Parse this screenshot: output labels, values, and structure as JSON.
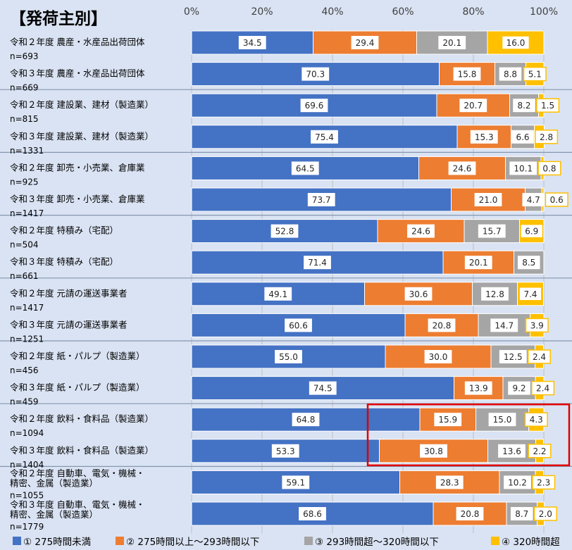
{
  "chart_data": {
    "type": "bar",
    "orientation": "horizontal",
    "stacked": "percent",
    "title": "【発荷主別】",
    "xticks": [
      "0%",
      "20%",
      "40%",
      "60%",
      "80%",
      "100%"
    ],
    "xlim": [
      0,
      100
    ],
    "grid": true,
    "legend_position": "bottom",
    "categories": [
      {
        "label": "令和２年度 農産・水産品出荷団体",
        "n": "n=693"
      },
      {
        "label": "令和３年度 農産・水産品出荷団体",
        "n": "n=669"
      },
      {
        "label": "令和２年度 建設業、建材（製造業）",
        "n": "n=815"
      },
      {
        "label": "令和３年度 建設業、建材（製造業）",
        "n": "n=1331"
      },
      {
        "label": "令和２年度 卸売・小売業、倉庫業",
        "n": "n=925"
      },
      {
        "label": "令和３年度 卸売・小売業、倉庫業",
        "n": "n=1417"
      },
      {
        "label": "令和２年度 特積み（宅配）",
        "n": "n=504"
      },
      {
        "label": "令和３年度 特積み（宅配）",
        "n": "n=661"
      },
      {
        "label": "令和２年度 元請の運送事業者",
        "n": "n=1417"
      },
      {
        "label": "令和３年度 元請の運送事業者",
        "n": "n=1251"
      },
      {
        "label": "令和２年度 紙・パルプ（製造業）",
        "n": "n=456"
      },
      {
        "label": "令和３年度 紙・パルプ（製造業）",
        "n": "n=459"
      },
      {
        "label": "令和２年度 飲料・食料品（製造業）",
        "n": "n=1094"
      },
      {
        "label": "令和３年度 飲料・食料品（製造業）",
        "n": "n=1404"
      },
      {
        "label": "令和２年度 自動車、電気・機械・\n精密、金属（製造業）",
        "n": "n=1055"
      },
      {
        "label": "令和３年度 自動車、電気・機械・\n精密、金属（製造業）",
        "n": "n=1779"
      }
    ],
    "series": [
      {
        "name": "① 275時間未満",
        "color": "#4472C4",
        "values": [
          34.5,
          70.3,
          69.6,
          75.4,
          64.5,
          73.7,
          52.8,
          71.4,
          49.1,
          60.6,
          55.0,
          74.5,
          64.8,
          53.3,
          59.1,
          68.6
        ],
        "labels": [
          "34.5",
          "70.3",
          "69.6",
          "75.4",
          "64.5",
          "73.7",
          "52.8",
          "71.4",
          "49.1",
          "60.6",
          "55.0",
          "74.5",
          "64.8",
          "53.3",
          "59.1",
          "68.6"
        ]
      },
      {
        "name": "② 275時間以上～293時間以下",
        "color": "#ED7D31",
        "values": [
          29.4,
          15.8,
          20.7,
          15.3,
          24.6,
          21.0,
          24.6,
          20.1,
          30.6,
          20.8,
          30.0,
          13.9,
          15.9,
          30.8,
          28.3,
          20.8
        ],
        "labels": [
          "29.4",
          "15.8",
          "20.7",
          "15.3",
          "24.6",
          "21.0",
          "24.6",
          "20.1",
          "30.6",
          "20.8",
          "30.0",
          "13.9",
          "15.9",
          "30.8",
          "28.3",
          "20.8"
        ]
      },
      {
        "name": "③ 293時間超～320時間以下",
        "color": "#A5A5A5",
        "values": [
          20.1,
          8.8,
          8.2,
          6.6,
          10.1,
          4.7,
          15.7,
          8.5,
          12.8,
          14.7,
          12.5,
          9.2,
          15.0,
          13.6,
          10.2,
          8.7
        ],
        "labels": [
          "20.1",
          "8.8",
          "8.2",
          "6.6",
          "10.1",
          "4.7",
          "15.7",
          "8.5",
          "12.8",
          "14.7",
          "12.5",
          "9.2",
          "15.0",
          "13.6",
          "10.2",
          "8.7"
        ]
      },
      {
        "name": "④ 320時間超",
        "color": "#FFC000",
        "values": [
          16.0,
          5.1,
          1.5,
          2.8,
          0.8,
          0.6,
          6.9,
          0.0,
          7.4,
          3.9,
          2.4,
          2.4,
          4.3,
          2.2,
          2.3,
          2.0
        ],
        "labels": [
          "16.0",
          "5.1",
          "1.5",
          "2.8",
          "0.8",
          "0.6",
          "6.9",
          "",
          "7.4",
          "3.9",
          "2.4",
          "2.4",
          "4.3",
          "2.2",
          "2.3",
          "2.0"
        ]
      }
    ],
    "highlight": {
      "rows": [
        12,
        13
      ],
      "from": 50,
      "color": "#E00000"
    },
    "colors": {
      "background": "#DAE3F3",
      "grid": "#BFBFBF",
      "separator": "#8497B0"
    }
  }
}
